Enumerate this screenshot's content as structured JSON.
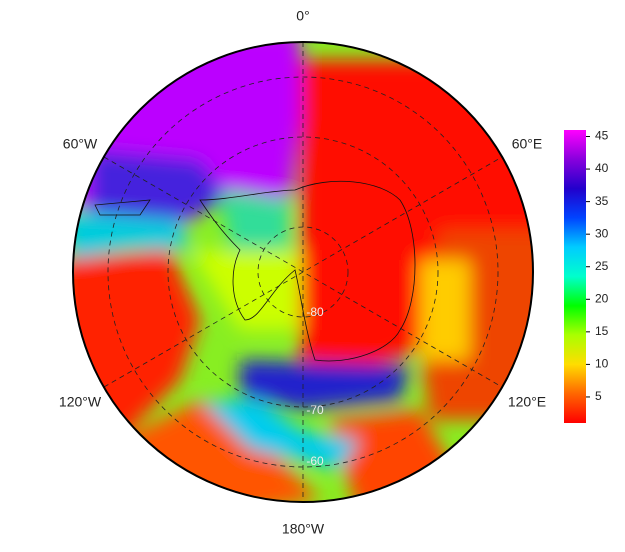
{
  "map": {
    "meridian_labels": [
      "0°",
      "60°E",
      "120°E",
      "180°W",
      "120°W",
      "60°W"
    ],
    "latitude_labels": [
      "-80",
      "-70",
      "-60"
    ],
    "colorbar": {
      "lim": [
        1,
        46
      ],
      "ticks": [
        5,
        10,
        15,
        20,
        25,
        30,
        35,
        40,
        45
      ],
      "colors": [
        "#ff0000",
        "#ff6600",
        "#ffdd00",
        "#aaff00",
        "#00ff00",
        "#00ffcc",
        "#00ccff",
        "#0044ff",
        "#2200cc",
        "#8800dd",
        "#ff00ff"
      ]
    }
  }
}
